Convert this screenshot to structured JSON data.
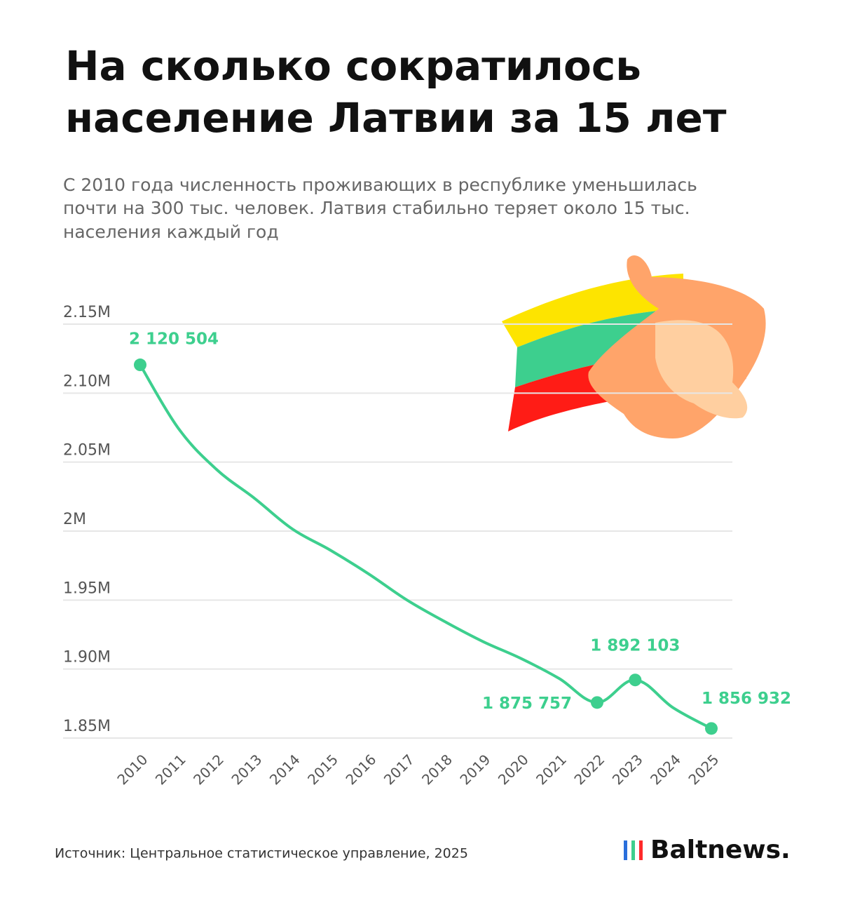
{
  "chart_data": {
    "type": "line",
    "title": [
      "На сколько сократилось",
      "население Латвии за 15 лет"
    ],
    "subtitle": [
      "С 2010 года численность проживающих в республике уменьшилась",
      "почти на 300 тыс. человек. Латвия стабильно теряет около 15 тыс.",
      "населения каждый год"
    ],
    "categories": [
      "2010",
      "2011",
      "2012",
      "2013",
      "2014",
      "2015",
      "2016",
      "2017",
      "2018",
      "2019",
      "2020",
      "2021",
      "2022",
      "2023",
      "2024",
      "2025"
    ],
    "series": [
      {
        "name": "Население",
        "color": "#3dcf8e",
        "values": [
          2120504,
          2074605,
          2044813,
          2023825,
          2001468,
          1986096,
          1968957,
          1950116,
          1934379,
          1919968,
          1907675,
          1893223,
          1875757,
          1892103,
          1871882,
          1856932
        ],
        "value_labels": [
          "2 120 504",
          null,
          null,
          null,
          null,
          null,
          null,
          null,
          null,
          null,
          null,
          null,
          "1 875 757",
          "1 892 103",
          null,
          "1 856 932"
        ]
      }
    ],
    "ylim": [
      1850000,
      2150000
    ],
    "yticks": [
      {
        "value": 1850000,
        "label": "1.85M"
      },
      {
        "value": 1900000,
        "label": "1.90M"
      },
      {
        "value": 1950000,
        "label": "1.95M"
      },
      {
        "value": 2000000,
        "label": "2M"
      },
      {
        "value": 2050000,
        "label": "2.05M"
      },
      {
        "value": 2100000,
        "label": "2.10M"
      },
      {
        "value": 2150000,
        "label": "2.15M"
      }
    ],
    "grid": true,
    "source": "Источник: Центральное статистическое управление, 2025",
    "logo": "Baltnews."
  }
}
